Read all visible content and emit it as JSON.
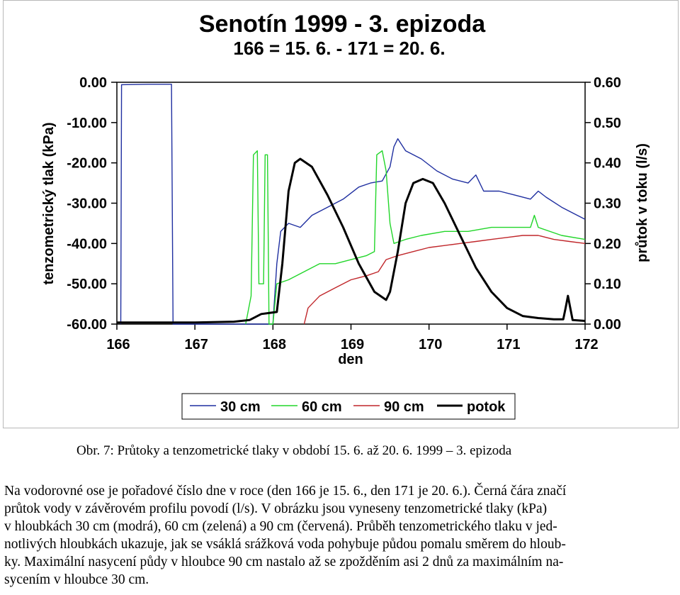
{
  "chart_data": {
    "type": "line",
    "title": "Senotín 1999 - 3. epizoda",
    "subtitle": "166 = 15. 6. - 171 = 20. 6.",
    "xlabel": "den",
    "ylabel_left": "tenzometrický tlak (kPa)",
    "ylabel_right": "průtok v toku (l/s)",
    "xlim": [
      166,
      172
    ],
    "ylim_left": [
      -60,
      0
    ],
    "ylim_right": [
      0,
      0.6
    ],
    "x_ticks": [
      "166",
      "167",
      "168",
      "169",
      "170",
      "171",
      "172"
    ],
    "y_left_ticks": [
      "0.00",
      "-10.00",
      "-20.00",
      "-30.00",
      "-40.00",
      "-50.00",
      "-60.00"
    ],
    "y_right_ticks": [
      "0.60",
      "0.50",
      "0.40",
      "0.30",
      "0.20",
      "0.10",
      "0.00"
    ],
    "legend_position": "bottom",
    "series": [
      {
        "name": "30 cm",
        "axis": "left",
        "color": "#1f2fa0",
        "points": [
          [
            166.05,
            -60
          ],
          [
            166.06,
            -0.6
          ],
          [
            166.4,
            -0.5
          ],
          [
            166.7,
            -0.5
          ],
          [
            166.72,
            -60
          ],
          [
            168.0,
            -60
          ],
          [
            168.05,
            -45
          ],
          [
            168.1,
            -37
          ],
          [
            168.2,
            -35
          ],
          [
            168.35,
            -36
          ],
          [
            168.5,
            -33
          ],
          [
            168.7,
            -31
          ],
          [
            168.9,
            -29
          ],
          [
            169.1,
            -26
          ],
          [
            169.25,
            -25
          ],
          [
            169.4,
            -24.5
          ],
          [
            169.5,
            -21
          ],
          [
            169.55,
            -16
          ],
          [
            169.6,
            -14
          ],
          [
            169.7,
            -17
          ],
          [
            169.9,
            -19
          ],
          [
            170.1,
            -22
          ],
          [
            170.3,
            -24
          ],
          [
            170.5,
            -25
          ],
          [
            170.6,
            -23
          ],
          [
            170.7,
            -27
          ],
          [
            170.9,
            -27
          ],
          [
            171.1,
            -28
          ],
          [
            171.3,
            -29
          ],
          [
            171.4,
            -27
          ],
          [
            171.5,
            -28.5
          ],
          [
            171.7,
            -31
          ],
          [
            171.9,
            -33
          ],
          [
            172.0,
            -34
          ]
        ]
      },
      {
        "name": "60 cm",
        "axis": "left",
        "color": "#22d62a",
        "points": [
          [
            167.65,
            -60
          ],
          [
            167.72,
            -53
          ],
          [
            167.75,
            -18
          ],
          [
            167.8,
            -17
          ],
          [
            167.82,
            -50
          ],
          [
            167.88,
            -50
          ],
          [
            167.9,
            -18
          ],
          [
            167.93,
            -18
          ],
          [
            167.95,
            -60
          ],
          [
            168.0,
            -60
          ],
          [
            168.05,
            -50
          ],
          [
            168.2,
            -49
          ],
          [
            168.4,
            -47
          ],
          [
            168.6,
            -45
          ],
          [
            168.8,
            -45
          ],
          [
            169.0,
            -44
          ],
          [
            169.2,
            -43
          ],
          [
            169.3,
            -42
          ],
          [
            169.33,
            -18
          ],
          [
            169.4,
            -17
          ],
          [
            169.45,
            -22
          ],
          [
            169.5,
            -35
          ],
          [
            169.55,
            -40
          ],
          [
            169.7,
            -39
          ],
          [
            169.9,
            -38
          ],
          [
            170.2,
            -37
          ],
          [
            170.5,
            -37
          ],
          [
            170.8,
            -36
          ],
          [
            171.1,
            -36
          ],
          [
            171.3,
            -36
          ],
          [
            171.35,
            -33
          ],
          [
            171.4,
            -36
          ],
          [
            171.7,
            -38
          ],
          [
            172.0,
            -39
          ]
        ]
      },
      {
        "name": "90 cm",
        "axis": "left",
        "color": "#c0262a",
        "points": [
          [
            168.4,
            -60
          ],
          [
            168.45,
            -56
          ],
          [
            168.6,
            -53
          ],
          [
            168.8,
            -51
          ],
          [
            169.0,
            -49
          ],
          [
            169.2,
            -48
          ],
          [
            169.35,
            -47
          ],
          [
            169.45,
            -44
          ],
          [
            169.6,
            -43
          ],
          [
            169.8,
            -42
          ],
          [
            170.0,
            -41
          ],
          [
            170.2,
            -40.5
          ],
          [
            170.4,
            -40
          ],
          [
            170.6,
            -39.5
          ],
          [
            170.8,
            -39
          ],
          [
            171.0,
            -38.5
          ],
          [
            171.2,
            -38
          ],
          [
            171.4,
            -38
          ],
          [
            171.6,
            -39
          ],
          [
            171.8,
            -39.5
          ],
          [
            172.0,
            -40
          ]
        ]
      },
      {
        "name": "potok",
        "axis": "right",
        "color": "#000000",
        "points": [
          [
            166.0,
            0.004
          ],
          [
            167.0,
            0.004
          ],
          [
            167.5,
            0.006
          ],
          [
            167.7,
            0.01
          ],
          [
            167.85,
            0.025
          ],
          [
            168.05,
            0.03
          ],
          [
            168.12,
            0.15
          ],
          [
            168.2,
            0.33
          ],
          [
            168.28,
            0.4
          ],
          [
            168.35,
            0.41
          ],
          [
            168.5,
            0.39
          ],
          [
            168.7,
            0.32
          ],
          [
            168.9,
            0.24
          ],
          [
            169.1,
            0.15
          ],
          [
            169.3,
            0.08
          ],
          [
            169.45,
            0.06
          ],
          [
            169.5,
            0.08
          ],
          [
            169.6,
            0.18
          ],
          [
            169.7,
            0.3
          ],
          [
            169.8,
            0.35
          ],
          [
            169.92,
            0.36
          ],
          [
            170.05,
            0.35
          ],
          [
            170.2,
            0.3
          ],
          [
            170.4,
            0.22
          ],
          [
            170.6,
            0.14
          ],
          [
            170.8,
            0.08
          ],
          [
            171.0,
            0.04
          ],
          [
            171.2,
            0.02
          ],
          [
            171.4,
            0.015
          ],
          [
            171.6,
            0.012
          ],
          [
            171.72,
            0.012
          ],
          [
            171.75,
            0.04
          ],
          [
            171.78,
            0.07
          ],
          [
            171.81,
            0.04
          ],
          [
            171.84,
            0.01
          ],
          [
            172.0,
            0.008
          ]
        ]
      }
    ]
  },
  "caption": "Obr. 7: Průtoky a tenzometrické tlaky v období 15. 6. až 20. 6. 1999 – 3. epizoda",
  "body_lines": [
    "Na vodorovné ose je pořadové číslo dne v roce (den 166 je 15. 6., den 171 je 20. 6.). Černá čára značí",
    "průtok vody v závěrovém profilu povodí (l/s). V obrázku jsou vyneseny tenzometrické tlaky (kPa)",
    "v hloubkách 30 cm (modrá), 60 cm (zelená) a 90 cm (červená). Průběh tenzometrického tlaku v jed-",
    "notlivých hloubkách ukazuje, jak se vsáklá srážková voda pohybuje půdou pomalu směrem do hloub-",
    "ky. Maximální nasycení půdy v hloubce 90 cm nastalo až se zpožděním asi 2 dnů za maximálním na-",
    "sycením v hloubce 30 cm."
  ]
}
